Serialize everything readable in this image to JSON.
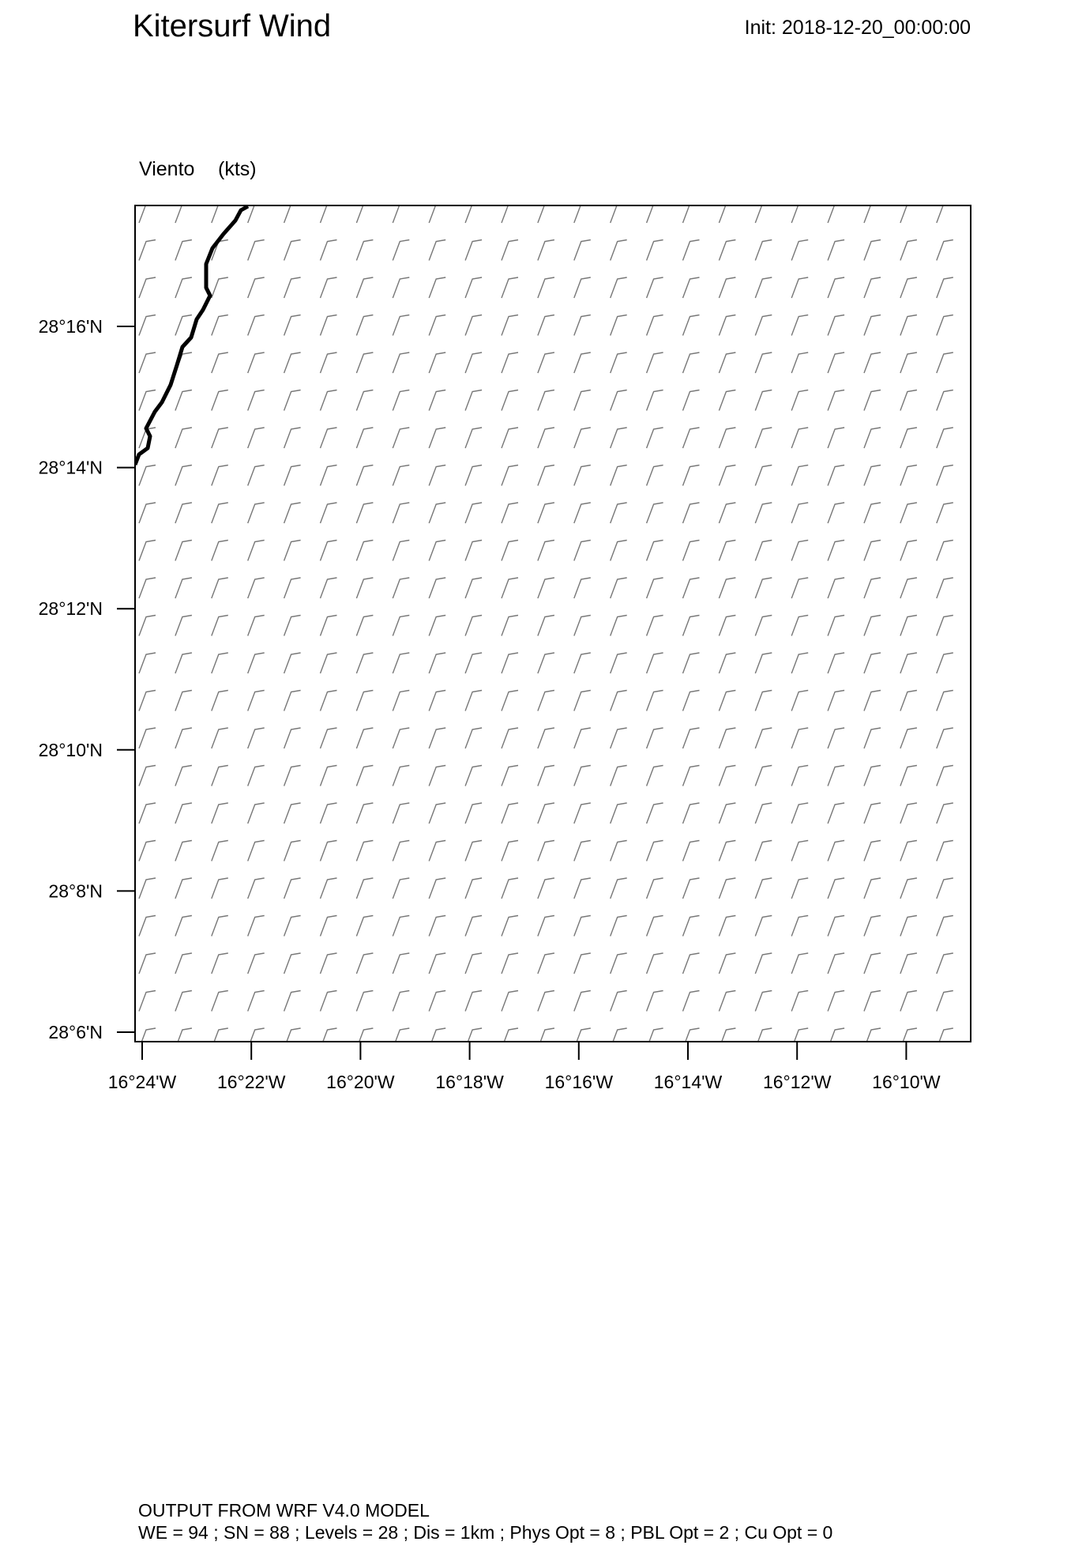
{
  "header": {
    "title": "Kitersurf Wind",
    "init": "Init: 2018-12-20_00:00:00"
  },
  "plot": {
    "label": "Viento",
    "units": "(kts)"
  },
  "axes": {
    "y_ticks": [
      "28°6'N",
      "28°8'N",
      "28°10'N",
      "28°12'N",
      "28°14'N",
      "28°16'N"
    ],
    "x_ticks": [
      "16°24'W",
      "16°22'W",
      "16°20'W",
      "16°18'W",
      "16°16'W",
      "16°14'W",
      "16°12'W",
      "16°10'W"
    ]
  },
  "footer": {
    "line1": "OUTPUT FROM WRF V4.0 MODEL",
    "line2": "WE = 94 ; SN = 88 ; Levels = 28 ; Dis = 1km ; Phys Opt = 8 ; PBL Opt = 2 ; Cu Opt = 0"
  }
}
